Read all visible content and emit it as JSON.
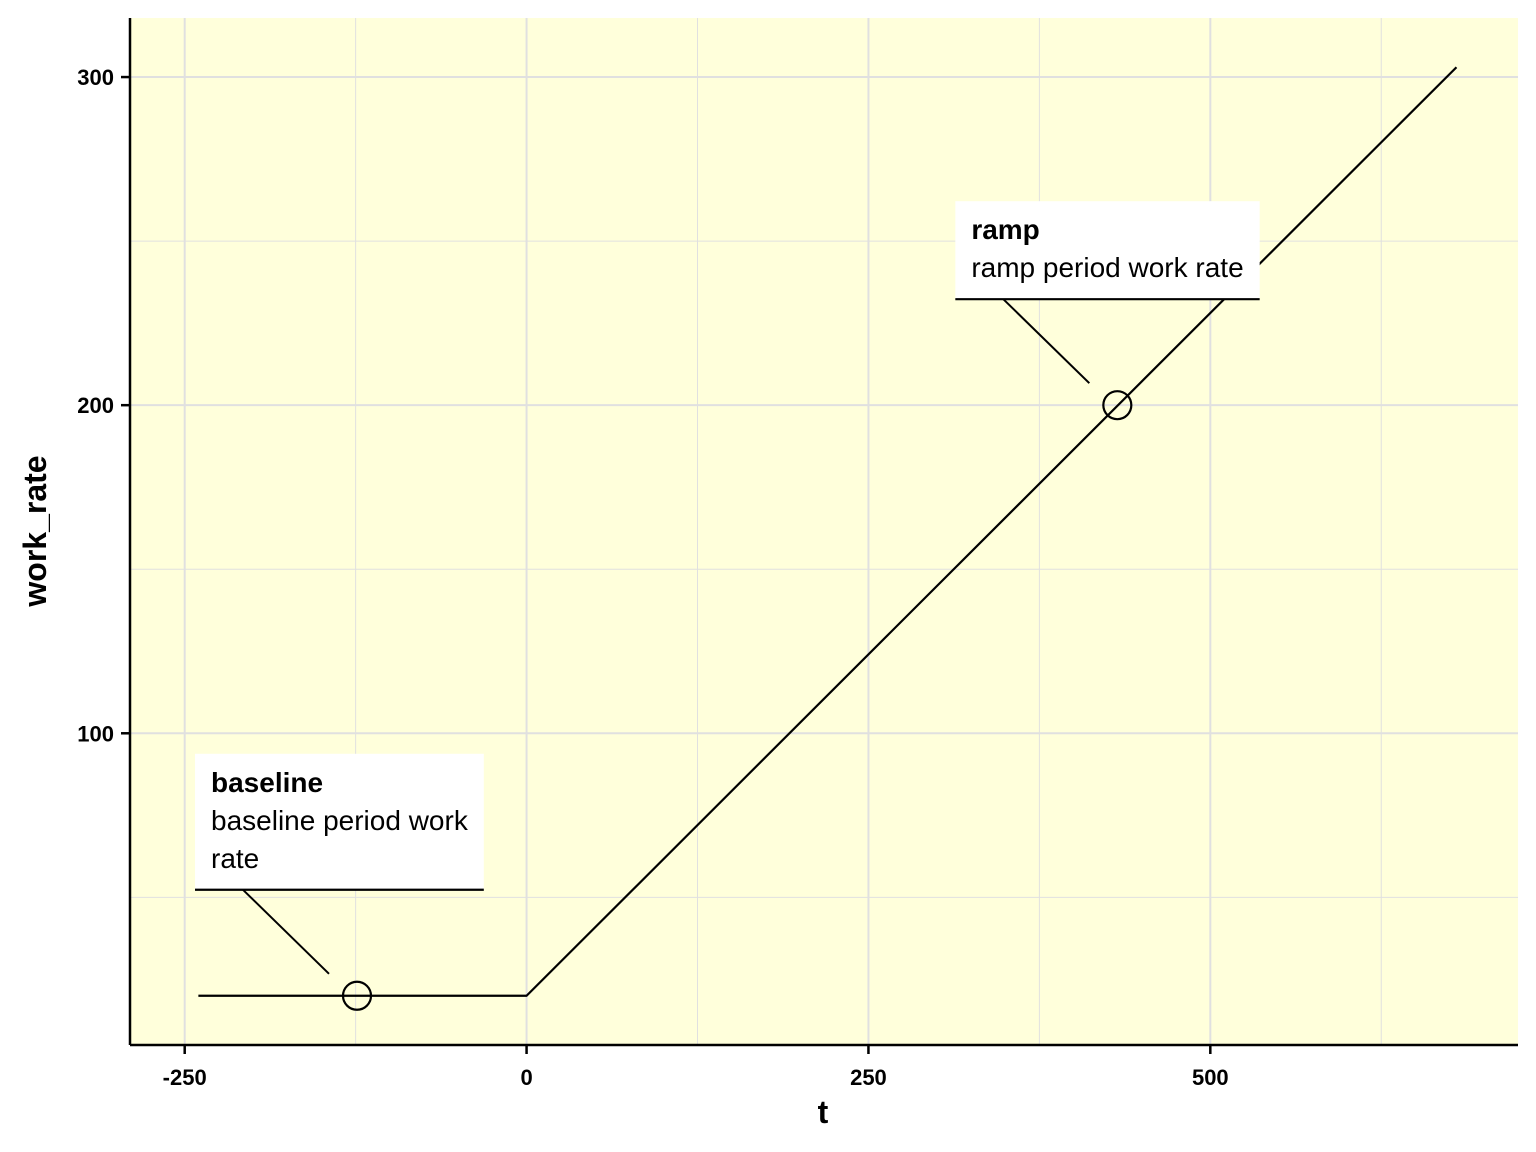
{
  "chart_data": {
    "type": "line",
    "xlabel": "t",
    "ylabel": "work_rate",
    "xlim": [
      -290,
      725
    ],
    "ylim": [
      5,
      318
    ],
    "x_ticks": [
      -250,
      0,
      250,
      500
    ],
    "x_tick_labels": [
      "-250",
      "0",
      "250",
      "500"
    ],
    "y_ticks": [
      100,
      200,
      300
    ],
    "y_tick_labels": [
      "100",
      "200",
      "300"
    ],
    "x_minor_grid": [
      -125,
      125,
      375,
      625
    ],
    "y_minor_grid": [
      50,
      150,
      250
    ],
    "grid": true,
    "panel_color": "#FFFFDB",
    "grid_color": "#E0E0E0",
    "line_color": "#000000",
    "series": [
      {
        "x": [
          -240,
          0,
          680
        ],
        "y": [
          20,
          20,
          303
        ]
      }
    ],
    "annotations": [
      {
        "title": "baseline",
        "description_lines": [
          "baseline period work",
          "rate"
        ],
        "point": [
          -124,
          20
        ],
        "position": "upper-left"
      },
      {
        "title": "ramp",
        "description_lines": [
          "ramp period work rate"
        ],
        "point": [
          432,
          200
        ],
        "position": "upper-left"
      }
    ]
  }
}
